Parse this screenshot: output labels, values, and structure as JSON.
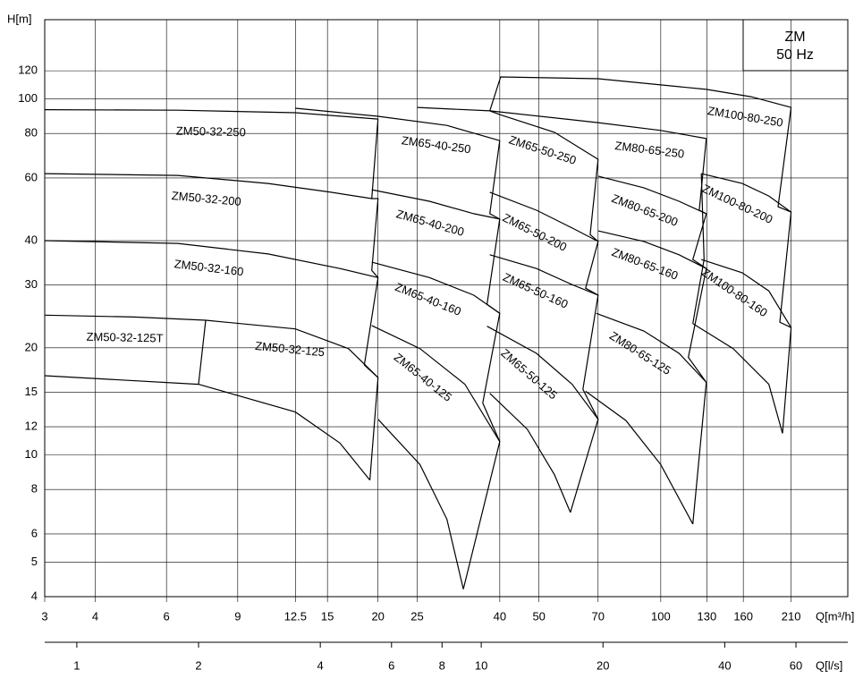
{
  "chart_data": {
    "type": "line",
    "log_x": true,
    "log_y": true,
    "grid": true,
    "color": "#000000",
    "y_label": "H[m]",
    "x_label": "Q[m³/h]",
    "x2_label": "Q[l/s]",
    "box_text": [
      "ZM",
      "50 Hz"
    ],
    "xlim": [
      3,
      290
    ],
    "ylim": [
      4,
      167
    ],
    "x2lim": [
      0.833,
      80.6
    ],
    "xticks": [
      3,
      4,
      6,
      9,
      12.5,
      15,
      20,
      25,
      40,
      50,
      70,
      100,
      130,
      160,
      210
    ],
    "yticks": [
      4,
      5,
      6,
      8,
      10,
      12,
      15,
      20,
      30,
      40,
      60,
      80,
      100,
      120
    ],
    "x2ticks": [
      1,
      2,
      4,
      6,
      8,
      10,
      20,
      40,
      60
    ],
    "series": [
      {
        "name": "ZM50-32-250",
        "x": [
          3,
          6.4,
          12.5,
          20
        ],
        "values": [
          93.3,
          93,
          91.5,
          87.8
        ]
      },
      {
        "name": "ZM50-32-200",
        "x": [
          3,
          6.4,
          10.7,
          15.3,
          19.3
        ],
        "values": [
          61.7,
          61,
          57.9,
          54.7,
          52.5
        ]
      },
      {
        "name": "ZM50-32-160",
        "x": [
          3,
          6.4,
          10.7,
          16.1,
          20
        ],
        "values": [
          40,
          39.3,
          36.7,
          33.4,
          31.5
        ]
      },
      {
        "name": "ZM50-32-125T",
        "x": [
          3,
          5,
          7.5
        ],
        "values": [
          24.7,
          24.4,
          23.9
        ]
      },
      {
        "name": "ZM50-32-125",
        "x": [
          7.5,
          12.5,
          16.9,
          20
        ],
        "values": [
          23.9,
          22.6,
          19.9,
          16.5
        ]
      },
      {
        "x": [
          3,
          7.2,
          12.5,
          16.1,
          19.1
        ],
        "values": [
          16.7,
          15.8,
          13.2,
          10.8,
          8.5
        ]
      },
      {
        "x": [
          7.5,
          7.2
        ],
        "values": [
          23.9,
          15.8
        ]
      },
      {
        "x": [
          20,
          19.3,
          20,
          19.3,
          20,
          18.5,
          20,
          19.1
        ],
        "values": [
          87.8,
          52.5,
          52.5,
          33,
          31.5,
          17.9,
          16.5,
          8.5
        ]
      },
      {
        "name": "ZM65-40-250",
        "x": [
          20,
          29.6,
          40
        ],
        "values": [
          89.4,
          84.3,
          76.4
        ]
      },
      {
        "x": [
          12.5,
          20
        ],
        "values": [
          94.2,
          89.4
        ]
      },
      {
        "name": "ZM65-40-200",
        "x": [
          19.3,
          26.8,
          34.5,
          40
        ],
        "values": [
          55.6,
          51.6,
          47.6,
          46
        ]
      },
      {
        "name": "ZM65-40-160",
        "x": [
          19.3,
          26.8,
          34.5,
          40
        ],
        "values": [
          34.8,
          31.5,
          28.1,
          25
        ]
      },
      {
        "name": "ZM65-40-125",
        "x": [
          19.3,
          25.4,
          32.8,
          40
        ],
        "values": [
          23.1,
          19.9,
          15.8,
          10.9
        ]
      },
      {
        "x": [
          20,
          25.4,
          29.6,
          32.5
        ],
        "values": [
          12.6,
          9.4,
          6.6,
          4.2
        ]
      },
      {
        "x": [
          40,
          37.8,
          40,
          37.2,
          40,
          36.3,
          40,
          32.5
        ],
        "values": [
          76.4,
          47.6,
          46,
          26.5,
          25,
          14,
          10.9,
          4.2
        ]
      },
      {
        "name": "ZM65-50-250",
        "x": [
          40,
          54.6,
          70
        ],
        "values": [
          90.4,
          80.6,
          67.7
        ]
      },
      {
        "x": [
          25,
          37.8,
          40
        ],
        "values": [
          94.7,
          92.6,
          90.4
        ]
      },
      {
        "name": "ZM65-50-200",
        "x": [
          37.8,
          49.3,
          60.4,
          70
        ],
        "values": [
          54.7,
          48.7,
          43.4,
          39.8
        ]
      },
      {
        "name": "ZM65-50-160",
        "x": [
          37.8,
          49.3,
          60.4,
          70
        ],
        "values": [
          36.5,
          33.4,
          30.1,
          28.1
        ]
      },
      {
        "name": "ZM65-50-125",
        "x": [
          37.2,
          49.3,
          60.4,
          70
        ],
        "values": [
          23,
          19.3,
          15.8,
          12.6
        ]
      },
      {
        "x": [
          37.8,
          46.8,
          54.6,
          59.8
        ],
        "values": [
          14.9,
          11.8,
          8.8,
          6.9
        ]
      },
      {
        "x": [
          70,
          66.9,
          70,
          65.2,
          70,
          64.2,
          70,
          59.8
        ],
        "values": [
          67.7,
          41.6,
          39.8,
          29.4,
          28.1,
          15.3,
          12.6,
          6.9
        ]
      },
      {
        "name": "ZM80-65-250",
        "x": [
          70,
          100,
          129.6
        ],
        "values": [
          85.8,
          81.6,
          77.4
        ]
      },
      {
        "x": [
          37.8,
          70
        ],
        "values": [
          92.6,
          85.8
        ]
      },
      {
        "name": "ZM80-65-200",
        "x": [
          70,
          90.8,
          111,
          129.6
        ],
        "values": [
          60.7,
          56.3,
          51.6,
          47.6
        ]
      },
      {
        "name": "ZM80-65-160",
        "x": [
          70,
          90.8,
          111,
          129.6
        ],
        "values": [
          42.6,
          39.8,
          36.5,
          33.4
        ]
      },
      {
        "name": "ZM80-65-125",
        "x": [
          69.3,
          90.8,
          111,
          129.6
        ],
        "values": [
          25,
          22.3,
          19.3,
          16
        ]
      },
      {
        "x": [
          65.2,
          82,
          100,
          120
        ],
        "values": [
          15.1,
          12.5,
          9.4,
          6.4
        ]
      },
      {
        "x": [
          129.6,
          124.5,
          129.6,
          120,
          129.6,
          117,
          129.6,
          120
        ],
        "values": [
          77.4,
          48.7,
          47.6,
          35.4,
          33.4,
          18.8,
          16,
          6.4
        ]
      },
      {
        "name": "ZM100-80-250",
        "x": [
          129.6,
          167,
          210
        ],
        "values": [
          106.4,
          101.5,
          94.7
        ]
      },
      {
        "x": [
          37.8,
          40.2,
          70,
          129.6
        ],
        "values": [
          92.6,
          115.3,
          114,
          106.4
        ]
      },
      {
        "name": "ZM100-80-200",
        "x": [
          126,
          159,
          185,
          210
        ],
        "values": [
          61.7,
          57.9,
          53.4,
          48.1
        ]
      },
      {
        "name": "ZM100-80-160",
        "x": [
          126,
          159,
          185,
          210
        ],
        "values": [
          35.4,
          32.5,
          28.9,
          22.8
        ]
      },
      {
        "x": [
          120,
          151,
          185,
          200
        ],
        "values": [
          23.4,
          19.9,
          15.8,
          11.5
        ]
      },
      {
        "x": [
          126,
          128,
          120
        ],
        "values": [
          61.7,
          35.4,
          23.4
        ]
      },
      {
        "x": [
          210,
          195,
          210,
          197,
          210,
          200
        ],
        "values": [
          94.7,
          49.8,
          48.1,
          23.6,
          22.8,
          11.5
        ]
      }
    ]
  }
}
